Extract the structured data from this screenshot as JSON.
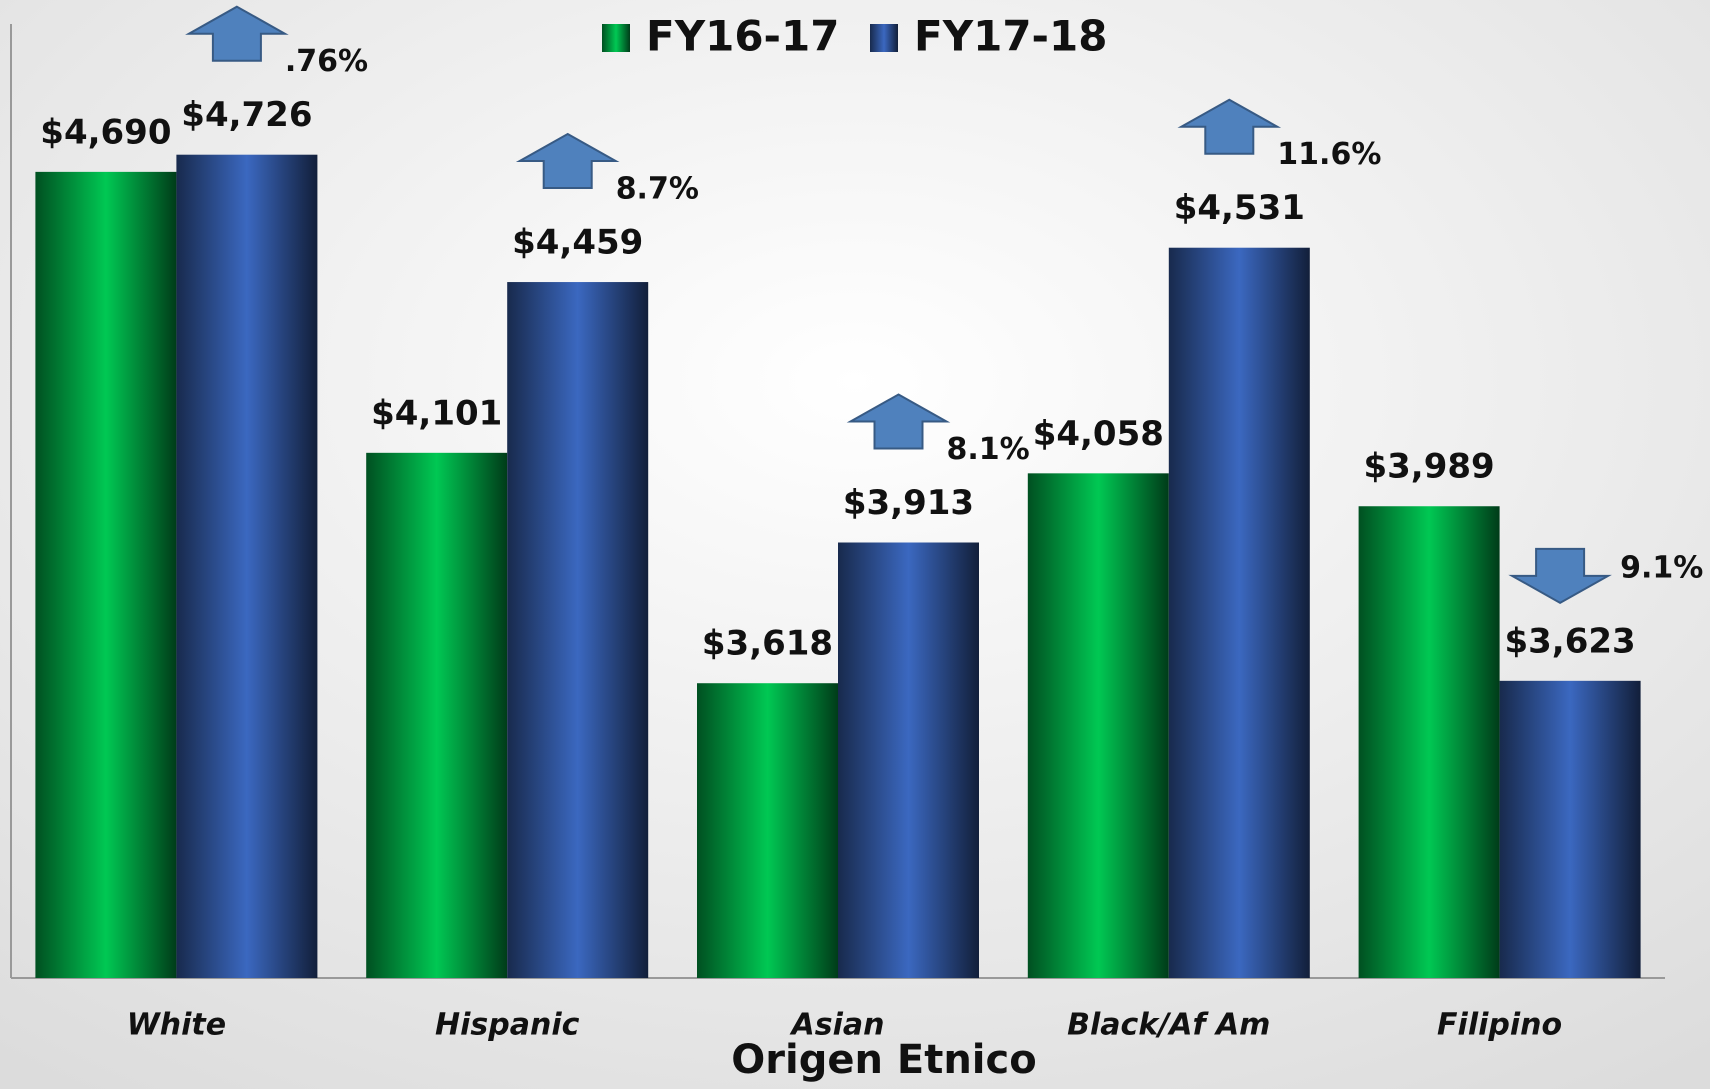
{
  "chart_data": {
    "type": "bar",
    "x_label": "Origen Etnico",
    "categories": [
      "White",
      "Hispanic",
      "Asian",
      "Black/Af Am",
      "Filipino"
    ],
    "series": [
      {
        "name": "FY16-17",
        "color": "#00c853",
        "values": [
          4690,
          4101,
          3618,
          4058,
          3989
        ],
        "value_labels": [
          "$4,690",
          "$4,101",
          "$3,618",
          "$4,058",
          "$3,989"
        ]
      },
      {
        "name": "FY17-18",
        "color": "#3b68c0",
        "values": [
          4726,
          4459,
          3913,
          4531,
          3623
        ],
        "value_labels": [
          "$4,726",
          "$4,459",
          "$3,913",
          "$4,531",
          "$3,623"
        ]
      }
    ],
    "ylim": [
      3000,
      5000
    ],
    "annotations": [
      {
        "text": ".76%",
        "direction": "up"
      },
      {
        "text": "8.7%",
        "direction": "up"
      },
      {
        "text": "8.1%",
        "direction": "up"
      },
      {
        "text": "11.6%",
        "direction": "up"
      },
      {
        "text": "9.1%",
        "direction": "down"
      }
    ],
    "annotation_color": "#4f81bd",
    "legend": "top"
  }
}
